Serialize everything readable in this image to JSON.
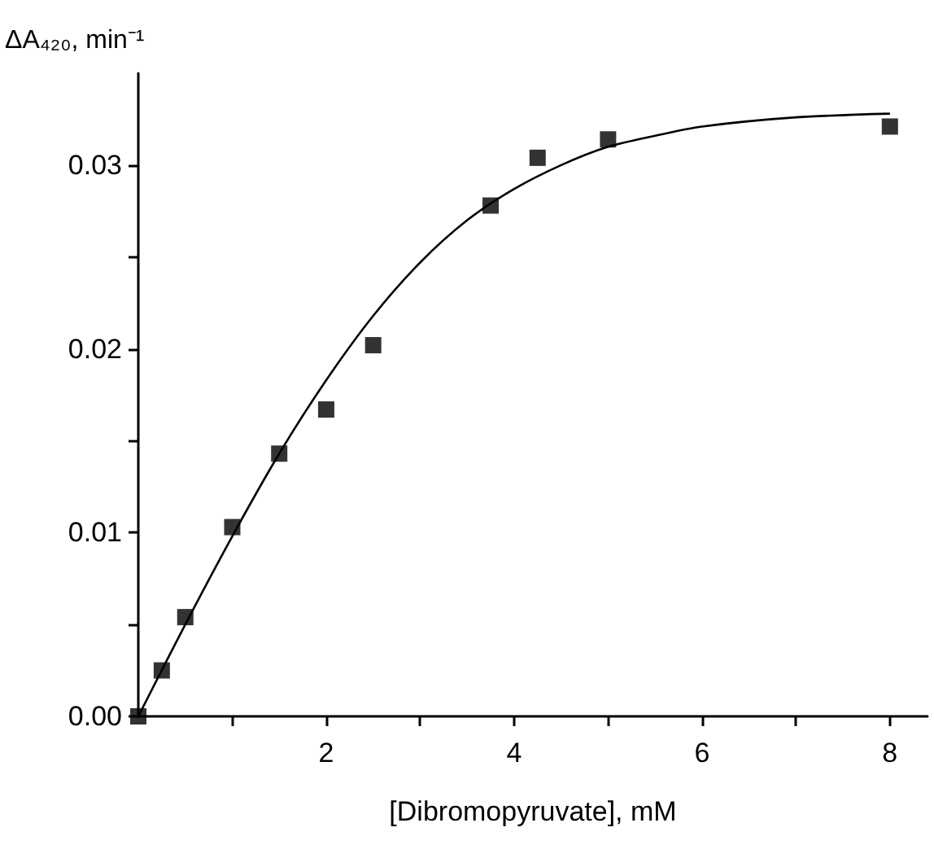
{
  "chart_data": {
    "type": "scatter",
    "xlabel": "[Dibromopyruvate], mM",
    "ylabel": "ΔA₄₂₀, min⁻¹",
    "x": [
      0,
      0.25,
      0.5,
      1,
      1.5,
      2,
      2.5,
      3.75,
      4.25,
      5,
      8
    ],
    "series": [
      {
        "color": "#000000",
        "marker": "square",
        "values": [
          0,
          0.0025,
          0.0054,
          0.0103,
          0.0143,
          0.0167,
          0.0202,
          0.0278,
          0.0304,
          0.0314,
          0.0321
        ]
      },
      {
        "type": "line",
        "color": "#000000",
        "marker": "none",
        "line_style": "solid",
        "x": [
          0,
          0.5,
          1,
          1.5,
          2,
          2.5,
          3,
          3.5,
          4,
          4.5,
          5,
          5.5,
          6,
          7,
          8
        ],
        "values": [
          0,
          0.005,
          0.0098,
          0.0143,
          0.0183,
          0.0218,
          0.0247,
          0.027,
          0.0287,
          0.03,
          0.031,
          0.0316,
          0.0321,
          0.0326,
          0.0328
        ]
      }
    ],
    "xlim": [
      0,
      8.4
    ],
    "xticks": [
      {
        "value": 1,
        "label": null
      },
      2,
      {
        "value": 3,
        "label": null
      },
      4,
      {
        "value": 5,
        "label": null
      },
      6,
      {
        "value": 7,
        "label": null
      },
      8
    ],
    "ylim": [
      0,
      0.035
    ],
    "yticks": [
      "0.00",
      {
        "value": 0.005,
        "label": null
      },
      0.01,
      {
        "value": 0.015,
        "label": null
      },
      0.02,
      {
        "value": 0.025,
        "label": null
      },
      0.03
    ],
    "grid": false
  }
}
